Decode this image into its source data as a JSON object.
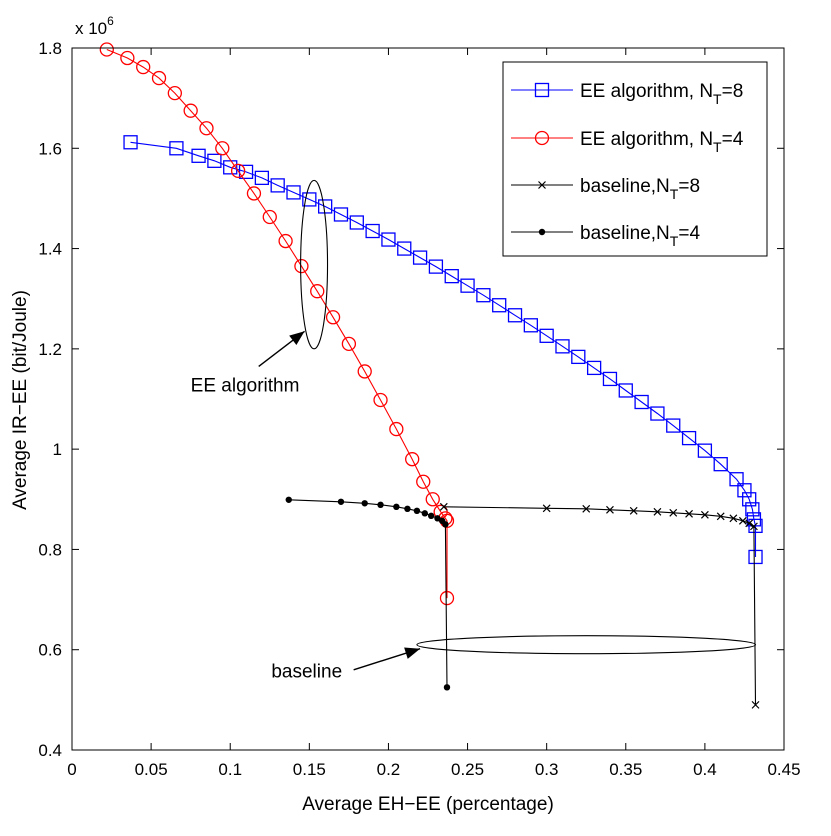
{
  "chart_data": {
    "type": "line",
    "xlabel": "Average EH−EE (percentage)",
    "ylabel": "Average IR−EE (bit/Joule)",
    "y_multiplier": "x 10",
    "y_multiplier_exp": "6",
    "xlim": [
      0,
      0.45
    ],
    "ylim": [
      0.4,
      1.8
    ],
    "x_ticks": [
      0,
      0.05,
      0.1,
      0.15,
      0.2,
      0.25,
      0.3,
      0.35,
      0.4,
      0.45
    ],
    "x_tick_labels": [
      "0",
      "0.05",
      "0.1",
      "0.15",
      "0.2",
      "0.25",
      "0.3",
      "0.35",
      "0.4",
      "0.45"
    ],
    "y_ticks": [
      0.4,
      0.6,
      0.8,
      1.0,
      1.2,
      1.4,
      1.6,
      1.8
    ],
    "y_tick_labels": [
      "0.4",
      "0.6",
      "0.8",
      "1",
      "1.2",
      "1.4",
      "1.6",
      "1.8"
    ],
    "legend_position": "top-right",
    "grid": false,
    "series": [
      {
        "name": "EE algorithm, N_T=8",
        "legend_main": "EE algorithm, N",
        "legend_sub": "T",
        "legend_tail": "=8",
        "color": "#0000ff",
        "marker": "square",
        "points": [
          [
            0.037,
            1.612
          ],
          [
            0.066,
            1.6
          ],
          [
            0.08,
            1.585
          ],
          [
            0.09,
            1.575
          ],
          [
            0.1,
            1.562
          ],
          [
            0.11,
            1.553
          ],
          [
            0.12,
            1.541
          ],
          [
            0.13,
            1.526
          ],
          [
            0.14,
            1.512
          ],
          [
            0.15,
            1.498
          ],
          [
            0.16,
            1.484
          ],
          [
            0.17,
            1.468
          ],
          [
            0.18,
            1.452
          ],
          [
            0.19,
            1.435
          ],
          [
            0.2,
            1.418
          ],
          [
            0.21,
            1.4
          ],
          [
            0.22,
            1.382
          ],
          [
            0.23,
            1.364
          ],
          [
            0.24,
            1.345
          ],
          [
            0.25,
            1.326
          ],
          [
            0.26,
            1.307
          ],
          [
            0.27,
            1.287
          ],
          [
            0.28,
            1.267
          ],
          [
            0.29,
            1.247
          ],
          [
            0.3,
            1.226
          ],
          [
            0.31,
            1.205
          ],
          [
            0.32,
            1.184
          ],
          [
            0.33,
            1.162
          ],
          [
            0.34,
            1.14
          ],
          [
            0.35,
            1.117
          ],
          [
            0.36,
            1.094
          ],
          [
            0.37,
            1.071
          ],
          [
            0.38,
            1.047
          ],
          [
            0.39,
            1.022
          ],
          [
            0.4,
            0.997
          ],
          [
            0.41,
            0.97
          ],
          [
            0.42,
            0.94
          ],
          [
            0.425,
            0.918
          ],
          [
            0.428,
            0.9
          ],
          [
            0.43,
            0.88
          ],
          [
            0.431,
            0.86
          ],
          [
            0.432,
            0.847
          ],
          [
            0.432,
            0.785
          ]
        ]
      },
      {
        "name": "EE algorithm, N_T=4",
        "legend_main": "EE algorithm, N",
        "legend_sub": "T",
        "legend_tail": "=4",
        "color": "#ff0000",
        "marker": "circle",
        "points": [
          [
            0.022,
            1.797
          ],
          [
            0.035,
            1.78
          ],
          [
            0.045,
            1.762
          ],
          [
            0.055,
            1.74
          ],
          [
            0.065,
            1.71
          ],
          [
            0.075,
            1.675
          ],
          [
            0.085,
            1.64
          ],
          [
            0.095,
            1.6
          ],
          [
            0.105,
            1.555
          ],
          [
            0.115,
            1.51
          ],
          [
            0.125,
            1.463
          ],
          [
            0.135,
            1.415
          ],
          [
            0.145,
            1.365
          ],
          [
            0.155,
            1.315
          ],
          [
            0.165,
            1.263
          ],
          [
            0.175,
            1.21
          ],
          [
            0.185,
            1.155
          ],
          [
            0.195,
            1.098
          ],
          [
            0.205,
            1.04
          ],
          [
            0.215,
            0.98
          ],
          [
            0.222,
            0.935
          ],
          [
            0.228,
            0.9
          ],
          [
            0.233,
            0.875
          ],
          [
            0.236,
            0.862
          ],
          [
            0.237,
            0.857
          ],
          [
            0.237,
            0.703
          ]
        ]
      },
      {
        "name": "baseline,N_T=8",
        "legend_main": "baseline,N",
        "legend_sub": "T",
        "legend_tail": "=8",
        "color": "#000000",
        "marker": "x",
        "points": [
          [
            0.235,
            0.885
          ],
          [
            0.3,
            0.882
          ],
          [
            0.325,
            0.881
          ],
          [
            0.34,
            0.879
          ],
          [
            0.355,
            0.877
          ],
          [
            0.37,
            0.875
          ],
          [
            0.38,
            0.873
          ],
          [
            0.39,
            0.871
          ],
          [
            0.4,
            0.869
          ],
          [
            0.41,
            0.866
          ],
          [
            0.418,
            0.862
          ],
          [
            0.424,
            0.857
          ],
          [
            0.428,
            0.852
          ],
          [
            0.431,
            0.846
          ],
          [
            0.432,
            0.49
          ]
        ]
      },
      {
        "name": "baseline,N_T=4",
        "legend_main": "baseline,N",
        "legend_sub": "T",
        "legend_tail": "=4",
        "color": "#000000",
        "marker": "dot",
        "points": [
          [
            0.137,
            0.899
          ],
          [
            0.17,
            0.895
          ],
          [
            0.185,
            0.892
          ],
          [
            0.195,
            0.889
          ],
          [
            0.205,
            0.885
          ],
          [
            0.212,
            0.881
          ],
          [
            0.218,
            0.877
          ],
          [
            0.223,
            0.872
          ],
          [
            0.227,
            0.867
          ],
          [
            0.231,
            0.862
          ],
          [
            0.234,
            0.857
          ],
          [
            0.236,
            0.85
          ],
          [
            0.237,
            0.525
          ]
        ]
      }
    ],
    "annotations": [
      {
        "text": "EE algorithm",
        "ellipse": {
          "cx": 0.153,
          "cy": 1.368,
          "rx": 0.0085,
          "ry": 0.168
        },
        "label_at": [
          0.075,
          1.115
        ],
        "arrow_from": [
          0.118,
          1.165
        ],
        "arrow_to": [
          0.147,
          1.235
        ]
      },
      {
        "text": "baseline",
        "ellipse": {
          "cx": 0.325,
          "cy": 0.61,
          "rx": 0.107,
          "ry": 0.018
        },
        "label_at": [
          0.126,
          0.545
        ],
        "arrow_from": [
          0.178,
          0.56
        ],
        "arrow_to": [
          0.22,
          0.602
        ]
      }
    ]
  }
}
